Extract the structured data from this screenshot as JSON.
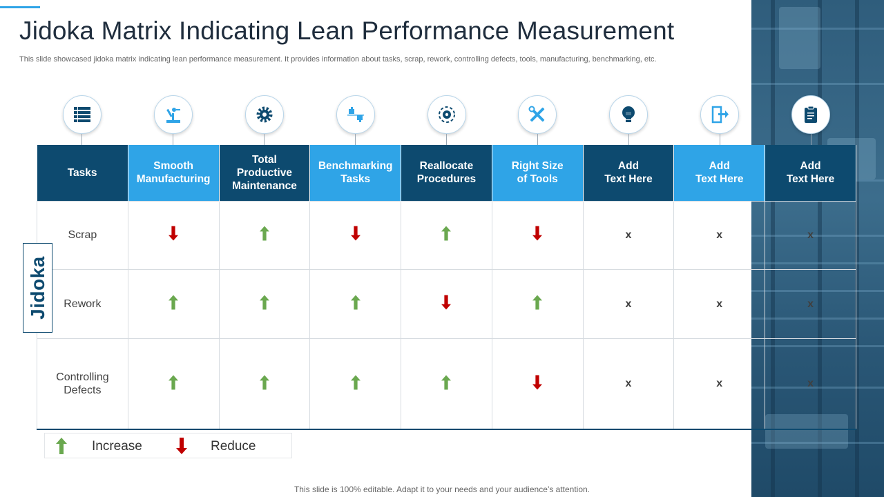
{
  "slide": {
    "title": "Jidoka Matrix Indicating Lean Performance Measurement",
    "subtitle": "This slide showcased jidoka matrix indicating lean performance measurement. It provides information about tasks, scrap, rework, controlling defects, tools, manufacturing, benchmarking, etc.",
    "footer": "This slide is 100% editable. Adapt it to your needs and your audience’s attention.",
    "side_label": "Jidoka"
  },
  "colors": {
    "dark_header": "#0d4a6f",
    "light_header": "#2fa4e7",
    "increase": "#6aa84f",
    "reduce": "#c00000"
  },
  "icons": [
    {
      "name": "list-table-icon",
      "style": "dark"
    },
    {
      "name": "robot-arm-icon",
      "style": "light"
    },
    {
      "name": "gear-icon",
      "style": "dark"
    },
    {
      "name": "thumbs-up-down-icon",
      "style": "light"
    },
    {
      "name": "money-target-icon",
      "style": "dark"
    },
    {
      "name": "wrench-screwdriver-icon",
      "style": "light"
    },
    {
      "name": "lightbulb-puzzle-icon",
      "style": "dark"
    },
    {
      "name": "exit-door-icon",
      "style": "light"
    },
    {
      "name": "clipboard-icon",
      "style": "dark"
    }
  ],
  "table": {
    "headers": [
      {
        "label": "Tasks",
        "style": "dark"
      },
      {
        "label": "Smooth\nManufacturing",
        "style": "light"
      },
      {
        "label": "Total\nProductive\nMaintenance",
        "style": "dark"
      },
      {
        "label": "Benchmarking\nTasks",
        "style": "light"
      },
      {
        "label": "Reallocate\nProcedures",
        "style": "dark"
      },
      {
        "label": "Right Size\nof Tools",
        "style": "light"
      },
      {
        "label": "Add\nText Here",
        "style": "dark"
      },
      {
        "label": "Add\nText Here",
        "style": "light"
      },
      {
        "label": "Add\nText Here",
        "style": "dark"
      }
    ],
    "rows": [
      {
        "label": "Scrap",
        "cells": [
          "reduce",
          "increase",
          "reduce",
          "increase",
          "reduce",
          "x",
          "x",
          "x"
        ]
      },
      {
        "label": "Rework",
        "cells": [
          "increase",
          "increase",
          "increase",
          "reduce",
          "increase",
          "x",
          "x",
          "x"
        ]
      },
      {
        "label": "Controlling\nDefects",
        "cells": [
          "increase",
          "increase",
          "increase",
          "increase",
          "reduce",
          "x",
          "x",
          "x"
        ]
      }
    ],
    "x_mark": "x"
  },
  "legend": {
    "increase_label": "Increase",
    "reduce_label": "Reduce"
  }
}
